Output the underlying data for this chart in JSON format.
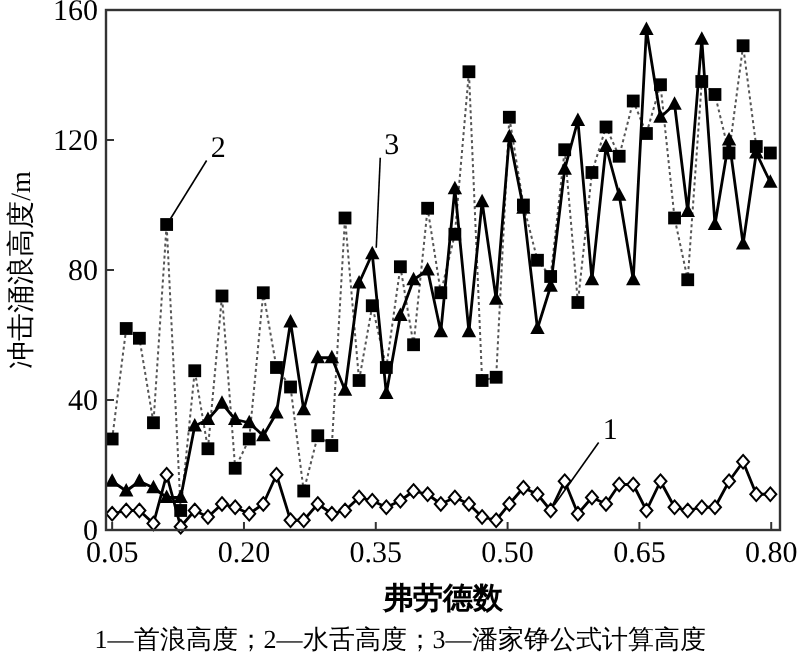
{
  "chart_data": {
    "type": "line",
    "xlabel": "弗劳德数",
    "ylabel": "冲击涌浪高度/m",
    "xlim": [
      0.043,
      0.81
    ],
    "xticks": [
      {
        "value": 0.05,
        "label": "0.05"
      },
      {
        "value": 0.2,
        "label": "0.20"
      },
      {
        "value": 0.35,
        "label": "0.35"
      },
      {
        "value": 0.5,
        "label": "0.50"
      },
      {
        "value": 0.65,
        "label": "0.65"
      },
      {
        "value": 0.8,
        "label": "0.80"
      }
    ],
    "ylim": [
      0,
      160
    ],
    "yticks": [
      0,
      40,
      80,
      120,
      160
    ],
    "grid": false,
    "x": [
      0.05,
      0.066,
      0.081,
      0.097,
      0.112,
      0.128,
      0.144,
      0.159,
      0.175,
      0.19,
      0.206,
      0.222,
      0.237,
      0.253,
      0.268,
      0.284,
      0.3,
      0.315,
      0.331,
      0.346,
      0.362,
      0.378,
      0.393,
      0.409,
      0.424,
      0.44,
      0.456,
      0.471,
      0.487,
      0.502,
      0.518,
      0.534,
      0.549,
      0.565,
      0.58,
      0.596,
      0.612,
      0.627,
      0.643,
      0.658,
      0.674,
      0.69,
      0.705,
      0.721,
      0.736,
      0.752,
      0.768,
      0.783,
      0.799
    ],
    "series": [
      {
        "name": "1",
        "color": "#000000",
        "marker": "diamond",
        "line_style": "solid",
        "values": [
          5,
          6,
          6,
          2,
          17,
          1,
          6,
          4,
          8,
          7,
          5,
          8,
          17,
          3,
          3,
          8,
          5,
          6,
          10,
          9,
          7,
          9,
          12,
          11,
          8,
          10,
          8,
          4,
          3,
          8,
          13,
          11,
          6,
          15,
          5,
          10,
          8,
          14,
          14,
          6,
          15,
          7,
          6,
          7,
          7,
          15,
          21,
          11,
          11
        ]
      },
      {
        "name": "2",
        "color": "#000000",
        "marker": "square",
        "line_style": "dotted",
        "values": [
          28,
          62,
          59,
          33,
          94,
          6,
          49,
          25,
          72,
          19,
          28,
          73,
          50,
          44,
          12,
          29,
          26,
          96,
          46,
          69,
          50,
          81,
          57,
          99,
          73,
          91,
          141,
          46,
          47,
          127,
          100,
          83,
          78,
          117,
          70,
          110,
          124,
          115,
          132,
          122,
          137,
          96,
          77,
          138,
          134,
          116,
          149,
          118,
          116
        ]
      },
      {
        "name": "3",
        "color": "#000000",
        "marker": "triangle",
        "line_style": "solid",
        "values": [
          15,
          12,
          15,
          13,
          10,
          10,
          32,
          34,
          39,
          34,
          33,
          29,
          36,
          64,
          37,
          53,
          53,
          43,
          76,
          85,
          42,
          66,
          77,
          80,
          61,
          105,
          61,
          101,
          71,
          121,
          99,
          62,
          75,
          111,
          126,
          77,
          118,
          103,
          77,
          154,
          127,
          131,
          98,
          151,
          94,
          120,
          88,
          116,
          107
        ]
      }
    ],
    "annotations": [
      "1—首浪高度；2—水舌高度；3—潘家铮公式计算高度"
    ]
  }
}
